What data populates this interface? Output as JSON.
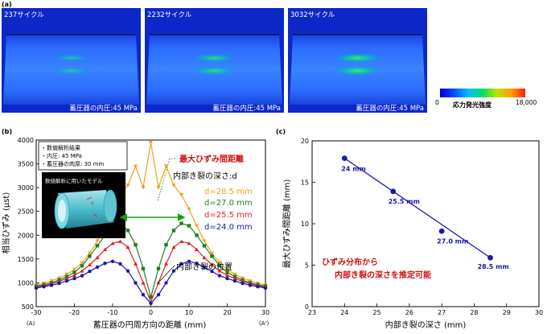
{
  "panel_a": {
    "label": "(a)",
    "images": [
      {
        "cycles": "237サイクル",
        "pressure": "蓄圧器の内圧:45 MPa",
        "intensity": 0.25
      },
      {
        "cycles": "2232サイクル",
        "pressure": "蓄圧器の内圧:45 MPa",
        "intensity": 0.6
      },
      {
        "cycles": "3032サイクル",
        "pressure": "蓄圧器の内圧:45 MPa",
        "intensity": 0.85
      }
    ],
    "colorbar": {
      "min": "0",
      "max": "18,000",
      "label": "応力発光強度",
      "colors": [
        "#0000c8",
        "#0050ff",
        "#00c0ff",
        "#00e060",
        "#c0e000",
        "#ffa000",
        "#ff2000"
      ]
    }
  },
  "panel_b": {
    "label": "(b)",
    "legend_box": {
      "lines": [
        "・数値解析結果",
        "・内圧: 45 MPa",
        "・蓄圧器の肉厚: 30 mm"
      ]
    },
    "model_inset_title": "数値解析に用いたモデル",
    "annotations": {
      "max_distance": "最大ひずみ間距離",
      "crack_depth_title": "内部き裂の深さ:d",
      "crack_position": "内部き裂の位置"
    },
    "xlabel": "蓄圧器の円周方向の距離 (mm)",
    "ylabel": "相当ひずみ (μst)",
    "x_end_labels": [
      "(A)",
      "(A')"
    ],
    "colors": {
      "d285": "#f0a020",
      "d270": "#208020",
      "d255": "#e02020",
      "d240": "#1818b0"
    }
  },
  "panel_c": {
    "label": "(c)",
    "xlabel": "内部き裂の深さ (mm)",
    "ylabel": "最大ひずみ間距離 (mm)",
    "annotation": [
      "ひずみ分布から",
      "内部き裂の深さを推定可能"
    ],
    "line_color": "#1818b0",
    "annotation_color": "#d01010"
  },
  "chart_data": [
    {
      "type": "line",
      "x": [
        -30,
        -28,
        -26,
        -24,
        -22,
        -20,
        -18,
        -16,
        -14,
        -12,
        -10,
        -8,
        -6,
        -4,
        -2,
        0,
        2,
        4,
        6,
        8,
        10,
        12,
        14,
        16,
        18,
        20,
        22,
        24,
        26,
        28,
        30
      ],
      "series": [
        {
          "name": "d=28.5 mm",
          "values": [
            950,
            990,
            1040,
            1100,
            1180,
            1280,
            1420,
            1620,
            1880,
            2200,
            2550,
            2850,
            3050,
            3450,
            3000,
            3950,
            3000,
            3450,
            3050,
            2850,
            2550,
            2200,
            1880,
            1620,
            1420,
            1280,
            1180,
            1100,
            1040,
            990,
            950
          ]
        },
        {
          "name": "d=27.0 mm",
          "values": [
            930,
            960,
            1000,
            1060,
            1130,
            1220,
            1360,
            1560,
            1780,
            2000,
            2200,
            2250,
            2100,
            1800,
            1300,
            700,
            1300,
            1800,
            2100,
            2250,
            2200,
            2000,
            1780,
            1560,
            1360,
            1220,
            1130,
            1060,
            1000,
            960,
            930
          ]
        },
        {
          "name": "d=25.5 mm",
          "values": [
            910,
            940,
            980,
            1030,
            1090,
            1160,
            1250,
            1380,
            1530,
            1700,
            1830,
            1870,
            1750,
            1400,
            1000,
            600,
            1000,
            1400,
            1750,
            1870,
            1830,
            1700,
            1530,
            1380,
            1250,
            1160,
            1090,
            1030,
            980,
            940,
            910
          ]
        },
        {
          "name": "d=24.0 mm",
          "values": [
            890,
            920,
            950,
            990,
            1040,
            1090,
            1150,
            1240,
            1330,
            1410,
            1450,
            1400,
            1250,
            1000,
            750,
            570,
            750,
            1000,
            1250,
            1400,
            1450,
            1410,
            1330,
            1240,
            1150,
            1090,
            1040,
            990,
            950,
            920,
            890
          ]
        }
      ],
      "xlim": [
        -30,
        30
      ],
      "ylim": [
        500,
        4000
      ],
      "xticks": [
        -30,
        -20,
        -10,
        0,
        10,
        20,
        30
      ],
      "yticks": [
        500,
        1000,
        1500,
        2000,
        2500,
        3000,
        3500,
        4000
      ],
      "xlabel": "蓄圧器の円周方向の距離 (mm)",
      "ylabel": "相当ひずみ (μst)"
    },
    {
      "type": "scatter",
      "x": [
        24.0,
        25.5,
        27.0,
        28.5
      ],
      "y": [
        17.9,
        13.9,
        9.1,
        5.9
      ],
      "point_labels": [
        "24 mm",
        "25.5 mm",
        "27.0 mm",
        "28.5 mm"
      ],
      "fit_line": {
        "x": [
          24.0,
          28.5
        ],
        "y": [
          17.9,
          5.9
        ]
      },
      "xlim": [
        23,
        30
      ],
      "ylim": [
        0,
        20
      ],
      "xticks": [
        23,
        24,
        25,
        26,
        27,
        28,
        29,
        30
      ],
      "yticks": [
        0,
        5,
        10,
        15,
        20
      ],
      "xlabel": "内部き裂の深さ (mm)",
      "ylabel": "最大ひずみ間距離 (mm)"
    }
  ]
}
